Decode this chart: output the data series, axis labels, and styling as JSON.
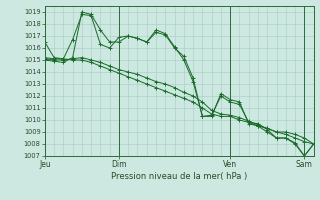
{
  "background_color": "#cce8e0",
  "grid_color": "#a8ccC4",
  "line_color": "#1a6b2a",
  "title": "Pression niveau de la mer( hPa )",
  "ylim": [
    1007,
    1019.5
  ],
  "yticks": [
    1007,
    1008,
    1009,
    1010,
    1011,
    1012,
    1013,
    1014,
    1015,
    1016,
    1017,
    1018,
    1019
  ],
  "xtick_labels": [
    "Jeu",
    "Dim",
    "Ven",
    "Sam"
  ],
  "xtick_positions": [
    0,
    8,
    20,
    28
  ],
  "n_points": 30,
  "series": [
    [
      1016.5,
      1015.2,
      1015.1,
      1016.7,
      1018.8,
      1018.7,
      1016.3,
      1016.0,
      1016.9,
      1017.0,
      1016.8,
      1016.5,
      1017.5,
      1017.2,
      1016.1,
      1015.0,
      1013.2,
      1010.3,
      1010.4,
      1012.0,
      1011.5,
      1011.3,
      1009.8,
      1009.7,
      1009.2,
      1008.5,
      1008.5,
      1008.0,
      1007.0,
      1008.0
    ],
    [
      1015.2,
      1015.1,
      1015.1,
      1015.0,
      1015.0,
      1014.8,
      1014.5,
      1014.2,
      1013.9,
      1013.6,
      1013.3,
      1013.0,
      1012.7,
      1012.4,
      1012.1,
      1011.8,
      1011.5,
      1011.0,
      1010.5,
      1010.3,
      1010.3,
      1010.0,
      1009.8,
      1009.5,
      1009.3,
      1009.0,
      1009.0,
      1008.8,
      1008.5,
      1008.0
    ],
    [
      1015.1,
      1015.0,
      1015.0,
      1015.1,
      1015.2,
      1015.0,
      1014.8,
      1014.5,
      1014.2,
      1014.0,
      1013.8,
      1013.5,
      1013.2,
      1013.0,
      1012.7,
      1012.3,
      1012.0,
      1011.5,
      1010.8,
      1010.5,
      1010.4,
      1010.2,
      1009.9,
      1009.6,
      1009.3,
      1009.0,
      1008.8,
      1008.5,
      1008.2,
      1008.0
    ],
    [
      1015.0,
      1014.9,
      1014.8,
      1015.2,
      1019.0,
      1018.8,
      1017.5,
      1016.5,
      1016.5,
      1017.0,
      1016.8,
      1016.5,
      1017.3,
      1017.1,
      1016.0,
      1015.3,
      1013.5,
      1010.3,
      1010.3,
      1012.2,
      1011.7,
      1011.5,
      1009.7,
      1009.5,
      1009.0,
      1008.5,
      1008.5,
      1008.1,
      1007.0,
      1008.0
    ]
  ]
}
